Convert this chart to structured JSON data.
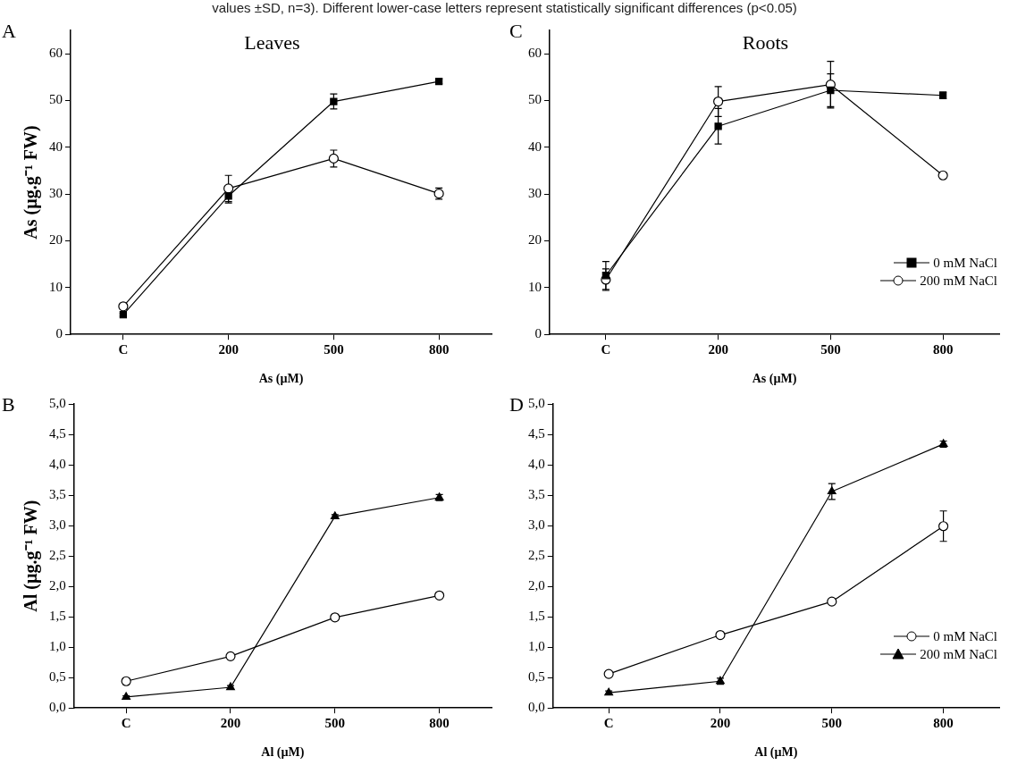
{
  "chart_data": [
    {
      "type": "line",
      "title": "Leaves",
      "xlabel": "As (µM)",
      "ylabel": "As (µg.g⁻¹ FW)",
      "annotations": [
        "values ±SD, n=3). Different lower-case letters represent statistically significant differences (p<0.05)",
        "A"
      ],
      "categories": [
        "C",
        "200",
        "500",
        "800"
      ],
      "ylim": [
        0,
        65
      ],
      "yticks": [
        0,
        10,
        20,
        30,
        40,
        50,
        60
      ],
      "series": [
        {
          "color": "#000000",
          "marker": "square",
          "values": [
            4.2,
            29.6,
            49.8,
            54.1
          ],
          "errors": [
            0.3,
            1.5,
            1.6,
            0.5
          ]
        },
        {
          "color": "#000000",
          "marker": "circle",
          "values": [
            6.0,
            31.2,
            37.6,
            30.1
          ],
          "errors": [
            0.4,
            2.8,
            1.8,
            1.2
          ]
        }
      ]
    },
    {
      "type": "line",
      "xlabel": "Al (µM)",
      "ylabel": "Al (µg.g⁻¹ FW)",
      "annotations": [
        "B"
      ],
      "categories": [
        "C",
        "200",
        "500",
        "800"
      ],
      "ylim": [
        0,
        5
      ],
      "yticks": [
        {
          "value": 0,
          "label": "0,0"
        },
        {
          "value": 0.5,
          "label": "0,5"
        },
        {
          "value": 1,
          "label": "1,0"
        },
        {
          "value": 1.5,
          "label": "1,5"
        },
        {
          "value": 2,
          "label": "2,0"
        },
        {
          "value": 2.5,
          "label": "2,5"
        },
        {
          "value": 3,
          "label": "3,0"
        },
        {
          "value": 3.5,
          "label": "3,5"
        },
        {
          "value": 4,
          "label": "4,0"
        },
        {
          "value": 4.5,
          "label": "4,5"
        },
        {
          "value": 5,
          "label": "5,0"
        }
      ],
      "series": [
        {
          "color": "#000000",
          "marker": "circle",
          "values": [
            0.44,
            0.85,
            1.49,
            1.85
          ],
          "errors": [
            0.05,
            0.03,
            0.03,
            0.02
          ]
        },
        {
          "color": "#000000",
          "marker": "triangle",
          "values": [
            0.18,
            0.34,
            3.15,
            3.46
          ],
          "errors": [
            0.02,
            0.03,
            0.03,
            0.05
          ]
        }
      ]
    },
    {
      "type": "line",
      "title": "Roots",
      "xlabel": "As (µM)",
      "annotations": [
        "C"
      ],
      "legend": "bottom right",
      "categories": [
        "C",
        "200",
        "500",
        "800"
      ],
      "ylim": [
        0,
        65
      ],
      "yticks": [
        0,
        10,
        20,
        30,
        40,
        50,
        60
      ],
      "series": [
        {
          "name": "0 mM NaCl",
          "color": "#000000",
          "marker": "square",
          "values": [
            12.6,
            44.5,
            52.2,
            51.1
          ],
          "errors": [
            3.0,
            3.8,
            3.5,
            0.7
          ]
        },
        {
          "name": "200 mM NaCl",
          "color": "#000000",
          "marker": "circle",
          "values": [
            11.7,
            49.8,
            53.4,
            34.0
          ],
          "errors": [
            2.3,
            3.2,
            5.0,
            0.5
          ]
        }
      ]
    },
    {
      "type": "line",
      "xlabel": "Al (µM)",
      "annotations": [
        "D"
      ],
      "legend": "bottom right",
      "categories": [
        "C",
        "200",
        "500",
        "800"
      ],
      "ylim": [
        0,
        5
      ],
      "yticks": [
        {
          "value": 0,
          "label": "0,0"
        },
        {
          "value": 0.5,
          "label": "0,5"
        },
        {
          "value": 1,
          "label": "1,0"
        },
        {
          "value": 1.5,
          "label": "1,5"
        },
        {
          "value": 2,
          "label": "2,0"
        },
        {
          "value": 2.5,
          "label": "2,5"
        },
        {
          "value": 3,
          "label": "3,0"
        },
        {
          "value": 3.5,
          "label": "3,5"
        },
        {
          "value": 4,
          "label": "4,0"
        },
        {
          "value": 4.5,
          "label": "4,5"
        },
        {
          "value": 5,
          "label": "5,0"
        }
      ],
      "series": [
        {
          "name": "0 mM NaCl",
          "color": "#000000",
          "marker": "circle",
          "values": [
            0.56,
            1.2,
            1.75,
            2.99
          ],
          "errors": [
            0.03,
            0.02,
            0.03,
            0.25
          ]
        },
        {
          "name": "200 mM NaCl",
          "color": "#000000",
          "marker": "triangle",
          "values": [
            0.25,
            0.44,
            3.56,
            4.34
          ],
          "errors": [
            0.03,
            0.05,
            0.13,
            0.05
          ]
        }
      ]
    }
  ]
}
